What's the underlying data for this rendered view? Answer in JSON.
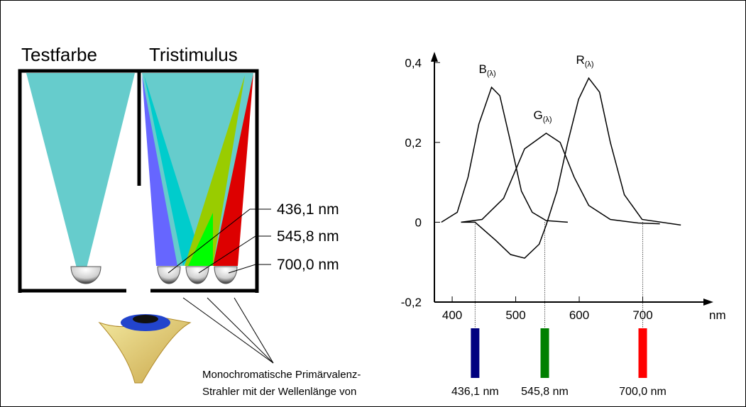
{
  "left": {
    "test_title": "Testfarbe",
    "tristimulus_title": "Tristimulus",
    "caption": [
      "Monochromatische Primärvalenz-",
      "Strahler mit der Wellenlänge von"
    ]
  },
  "chart_data": {
    "type": "line",
    "xlim": [
      372,
      800
    ],
    "ylim": [
      -0.2,
      0.42
    ],
    "xticks": [
      400,
      500,
      600,
      700
    ],
    "x_unit": "nm",
    "yticks": [
      {
        "value": -0.2,
        "label": "-0,2"
      },
      0,
      {
        "value": 0.2,
        "label": "0,2"
      },
      {
        "value": 0.4,
        "label": "0,4"
      }
    ],
    "series": [
      {
        "name": "B",
        "subscript": "(λ)",
        "color": "#000000",
        "x": [
          383,
          408,
          425,
          442,
          462,
          475,
          492,
          509,
          526,
          548,
          582
        ],
        "values": [
          0,
          0.025,
          0.113,
          0.246,
          0.338,
          0.317,
          0.2,
          0.078,
          0.025,
          0.004,
          0
        ]
      },
      {
        "name": "G",
        "subscript": "(λ)",
        "color": "#000000",
        "x": [
          414,
          447,
          481,
          514,
          548,
          570,
          592,
          615,
          649,
          693,
          727
        ],
        "values": [
          0,
          0.007,
          0.06,
          0.184,
          0.223,
          0.2,
          0.113,
          0.042,
          0.007,
          -0.002,
          -0.004
        ]
      },
      {
        "name": "R",
        "subscript": "(λ)",
        "color": "#000000",
        "x": [
          414,
          436,
          469,
          492,
          514,
          537,
          548,
          565,
          582,
          599,
          615,
          632,
          649,
          671,
          699,
          760
        ],
        "values": [
          0,
          0,
          -0.046,
          -0.081,
          -0.09,
          -0.055,
          -0.007,
          0.078,
          0.2,
          0.308,
          0.361,
          0.326,
          0.2,
          0.069,
          0.007,
          -0.007
        ]
      }
    ],
    "primaries": [
      {
        "wavelength": 436.1,
        "label": "436,1 nm",
        "color": "#00007f"
      },
      {
        "wavelength": 545.8,
        "label": "545,8 nm",
        "color": "#008000"
      },
      {
        "wavelength": 700.0,
        "label": "700,0 nm",
        "color": "#ff0000"
      }
    ]
  }
}
